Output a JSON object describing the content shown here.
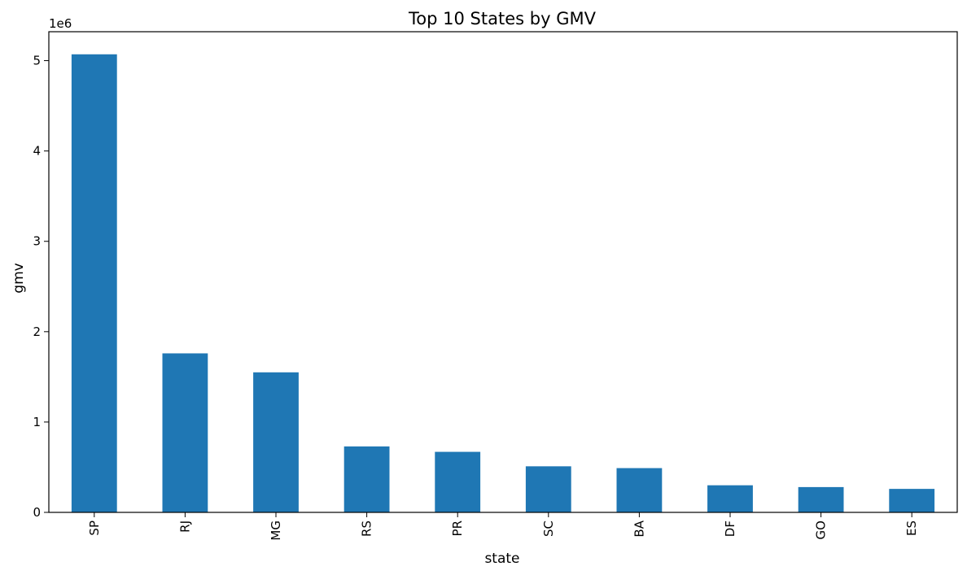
{
  "chart_data": {
    "type": "bar",
    "title": "Top 10 States by GMV",
    "xlabel": "state",
    "ylabel": "gmv",
    "y_offset_label": "1e6",
    "categories": [
      "SP",
      "RJ",
      "MG",
      "RS",
      "PR",
      "SC",
      "BA",
      "DF",
      "GO",
      "ES"
    ],
    "values": [
      5070000,
      1760000,
      1550000,
      730000,
      670000,
      510000,
      490000,
      300000,
      280000,
      260000
    ],
    "y_ticks": [
      0,
      1000000,
      2000000,
      3000000,
      4000000,
      5000000
    ],
    "y_tick_labels": [
      "0",
      "1",
      "2",
      "3",
      "4",
      "5"
    ],
    "ylim": [
      0,
      5320000
    ],
    "grid": false,
    "bar_color": "#1f77b4"
  }
}
